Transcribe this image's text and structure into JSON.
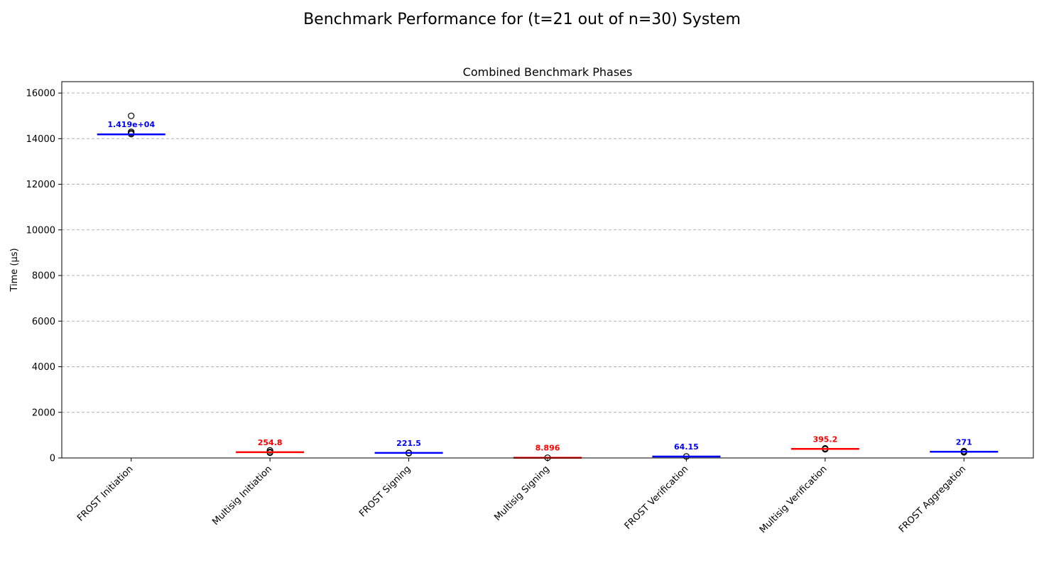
{
  "suptitle": "Benchmark Performance for (t=21 out of n=30) System",
  "chart_data": {
    "type": "box",
    "title": "Combined Benchmark Phases",
    "xlabel": "",
    "ylabel": "Time (μs)",
    "ylim": [
      0,
      16500
    ],
    "yticks": [
      0,
      2000,
      4000,
      6000,
      8000,
      10000,
      12000,
      14000,
      16000
    ],
    "grid": "y-dashed",
    "colors": {
      "frost": "#0000ff",
      "multisig": "#ff0000",
      "outlier": "#000000",
      "grid": "#b0b0b0"
    },
    "categories": [
      "FROST Initiation",
      "Multisig Initiation",
      "FROST Signing",
      "Multisig Signing",
      "FROST Verification",
      "Multisig Verification",
      "FROST Aggregation"
    ],
    "series": [
      {
        "category": "FROST Initiation",
        "median": 14190,
        "label": "1.419e+04",
        "color_key": "frost",
        "outliers": [
          15000,
          14300,
          14250,
          14200
        ]
      },
      {
        "category": "Multisig Initiation",
        "median": 254.8,
        "label": "254.8",
        "color_key": "multisig",
        "outliers": [
          330,
          260,
          230
        ]
      },
      {
        "category": "FROST Signing",
        "median": 221.5,
        "label": "221.5",
        "color_key": "frost",
        "outliers": [
          225,
          210
        ]
      },
      {
        "category": "Multisig Signing",
        "median": 8.896,
        "label": "8.896",
        "color_key": "multisig",
        "outliers": [
          10
        ]
      },
      {
        "category": "FROST Verification",
        "median": 64.15,
        "label": "64.15",
        "color_key": "frost",
        "outliers": [
          65
        ]
      },
      {
        "category": "Multisig Verification",
        "median": 395.2,
        "label": "395.2",
        "color_key": "multisig",
        "outliers": [
          420,
          395,
          380
        ]
      },
      {
        "category": "FROST Aggregation",
        "median": 271,
        "label": "271",
        "color_key": "frost",
        "outliers": [
          300,
          271,
          250
        ]
      }
    ]
  }
}
